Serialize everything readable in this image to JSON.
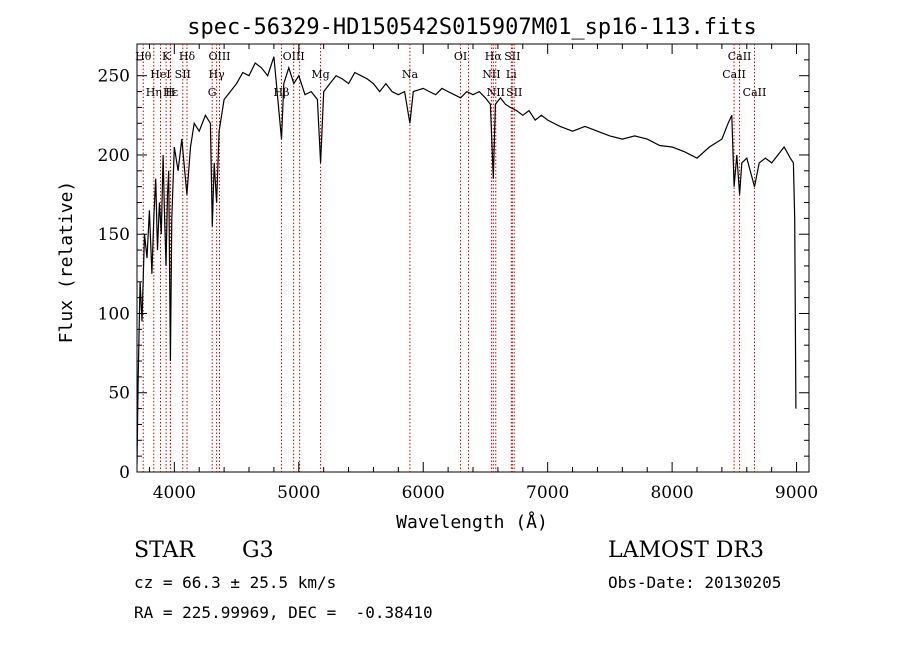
{
  "chart_data": {
    "type": "line",
    "title": "spec-56329-HD150542S015907M01_sp16-113.fits",
    "xlabel": "Wavelength (Å)",
    "ylabel": "Flux (relative)",
    "xlim": [
      3700,
      9100
    ],
    "ylim": [
      0,
      270
    ],
    "xticks": [
      4000,
      5000,
      6000,
      7000,
      8000,
      9000
    ],
    "yticks": [
      0,
      50,
      100,
      150,
      200,
      250
    ],
    "grid": false,
    "colors": {
      "spectrum": "#000000",
      "lines": "#cc0000",
      "text": "#000000"
    },
    "series": [
      {
        "values": [
          [
            3700,
            5
          ],
          [
            3710,
            60
          ],
          [
            3725,
            120
          ],
          [
            3740,
            95
          ],
          [
            3760,
            150
          ],
          [
            3780,
            135
          ],
          [
            3800,
            165
          ],
          [
            3820,
            125
          ],
          [
            3835,
            160
          ],
          [
            3850,
            185
          ],
          [
            3865,
            140
          ],
          [
            3880,
            170
          ],
          [
            3895,
            150
          ],
          [
            3910,
            200
          ],
          [
            3920,
            165
          ],
          [
            3933,
            130
          ],
          [
            3945,
            175
          ],
          [
            3955,
            190
          ],
          [
            3968,
            70
          ],
          [
            3980,
            160
          ],
          [
            4000,
            205
          ],
          [
            4030,
            190
          ],
          [
            4060,
            210
          ],
          [
            4101,
            175
          ],
          [
            4130,
            205
          ],
          [
            4160,
            220
          ],
          [
            4200,
            215
          ],
          [
            4250,
            225
          ],
          [
            4290,
            220
          ],
          [
            4305,
            155
          ],
          [
            4320,
            195
          ],
          [
            4340,
            170
          ],
          [
            4360,
            215
          ],
          [
            4400,
            235
          ],
          [
            4450,
            240
          ],
          [
            4500,
            245
          ],
          [
            4550,
            252
          ],
          [
            4600,
            250
          ],
          [
            4650,
            258
          ],
          [
            4700,
            255
          ],
          [
            4750,
            250
          ],
          [
            4800,
            262
          ],
          [
            4861,
            210
          ],
          [
            4880,
            245
          ],
          [
            4920,
            255
          ],
          [
            4960,
            245
          ],
          [
            5000,
            250
          ],
          [
            5050,
            238
          ],
          [
            5100,
            240
          ],
          [
            5150,
            235
          ],
          [
            5175,
            195
          ],
          [
            5200,
            240
          ],
          [
            5250,
            245
          ],
          [
            5300,
            250
          ],
          [
            5350,
            248
          ],
          [
            5400,
            245
          ],
          [
            5450,
            252
          ],
          [
            5500,
            250
          ],
          [
            5550,
            248
          ],
          [
            5600,
            245
          ],
          [
            5650,
            240
          ],
          [
            5700,
            245
          ],
          [
            5750,
            240
          ],
          [
            5800,
            238
          ],
          [
            5850,
            240
          ],
          [
            5893,
            220
          ],
          [
            5920,
            240
          ],
          [
            6000,
            242
          ],
          [
            6050,
            240
          ],
          [
            6100,
            238
          ],
          [
            6150,
            242
          ],
          [
            6200,
            240
          ],
          [
            6250,
            238
          ],
          [
            6300,
            236
          ],
          [
            6350,
            240
          ],
          [
            6400,
            238
          ],
          [
            6450,
            240
          ],
          [
            6500,
            236
          ],
          [
            6540,
            232
          ],
          [
            6563,
            185
          ],
          [
            6580,
            232
          ],
          [
            6620,
            236
          ],
          [
            6660,
            232
          ],
          [
            6700,
            230
          ],
          [
            6750,
            228
          ],
          [
            6800,
            225
          ],
          [
            6850,
            228
          ],
          [
            6900,
            222
          ],
          [
            6950,
            225
          ],
          [
            7000,
            222
          ],
          [
            7100,
            218
          ],
          [
            7200,
            215
          ],
          [
            7300,
            218
          ],
          [
            7400,
            215
          ],
          [
            7500,
            212
          ],
          [
            7600,
            210
          ],
          [
            7700,
            212
          ],
          [
            7800,
            210
          ],
          [
            7900,
            206
          ],
          [
            8000,
            205
          ],
          [
            8100,
            202
          ],
          [
            8200,
            198
          ],
          [
            8300,
            205
          ],
          [
            8400,
            210
          ],
          [
            8450,
            220
          ],
          [
            8480,
            225
          ],
          [
            8498,
            180
          ],
          [
            8520,
            200
          ],
          [
            8542,
            175
          ],
          [
            8560,
            195
          ],
          [
            8600,
            198
          ],
          [
            8662,
            180
          ],
          [
            8700,
            195
          ],
          [
            8750,
            198
          ],
          [
            8800,
            195
          ],
          [
            8850,
            200
          ],
          [
            8900,
            205
          ],
          [
            8950,
            198
          ],
          [
            8975,
            195
          ],
          [
            8985,
            160
          ],
          [
            8995,
            40
          ]
        ]
      }
    ],
    "line_markers": [
      {
        "wl": 3750,
        "label": "Hθ",
        "row": 0
      },
      {
        "wl": 3835,
        "label": "Hη",
        "row": 2
      },
      {
        "wl": 3889,
        "label": "HeI",
        "row": 1
      },
      {
        "wl": 3934,
        "label": "K",
        "row": 0
      },
      {
        "wl": 3968,
        "label": "H",
        "row": 2
      },
      {
        "wl": 3970,
        "label": "Hε",
        "row": 2
      },
      {
        "wl": 4068,
        "label": "SII",
        "row": 1
      },
      {
        "wl": 4102,
        "label": "Hδ",
        "row": 0
      },
      {
        "wl": 4304,
        "label": "G",
        "row": 2
      },
      {
        "wl": 4340,
        "label": "Hγ",
        "row": 1
      },
      {
        "wl": 4363,
        "label": "OIII",
        "row": 0
      },
      {
        "wl": 4861,
        "label": "Hβ",
        "row": 2
      },
      {
        "wl": 4959,
        "label": "OIII",
        "row": 0
      },
      {
        "wl": 5007,
        "label": "",
        "row": 0
      },
      {
        "wl": 5175,
        "label": "Mg",
        "row": 1
      },
      {
        "wl": 5893,
        "label": "Na",
        "row": 1
      },
      {
        "wl": 6300,
        "label": "OI",
        "row": 0
      },
      {
        "wl": 6364,
        "label": "",
        "row": 0
      },
      {
        "wl": 6548,
        "label": "NII",
        "row": 1
      },
      {
        "wl": 6563,
        "label": "Hα",
        "row": 0
      },
      {
        "wl": 6583,
        "label": "NII",
        "row": 2
      },
      {
        "wl": 6708,
        "label": "Li",
        "row": 1
      },
      {
        "wl": 6716,
        "label": "SII",
        "row": 0
      },
      {
        "wl": 6731,
        "label": "SII",
        "row": 2
      },
      {
        "wl": 8498,
        "label": "CaII",
        "row": 1
      },
      {
        "wl": 8542,
        "label": "CaII",
        "row": 0
      },
      {
        "wl": 8662,
        "label": "CaII",
        "row": 2
      }
    ]
  },
  "info": {
    "class_label": "STAR",
    "subclass": "G3",
    "survey": "LAMOST DR3",
    "redshift_line": "cz = 66.3 ± 25.5 km/s",
    "obs_date_line": "Obs-Date: 20130205",
    "coords_line": "RA = 225.99969, DEC =  -0.38410"
  }
}
